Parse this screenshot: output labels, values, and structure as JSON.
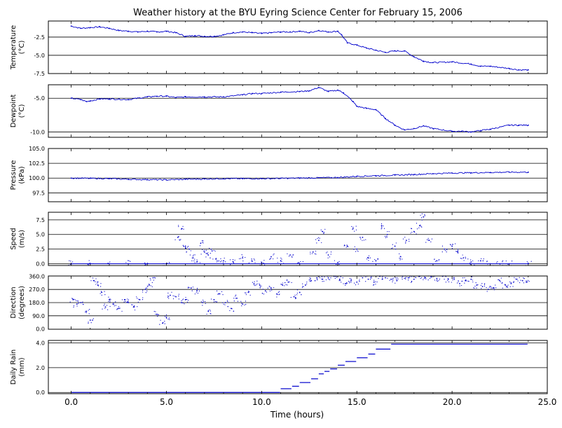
{
  "chart_data": {
    "type": "scatter",
    "title": "Weather history at the BYU Eyring Science Center for February 15, 2006",
    "xlabel": "Time (hours)",
    "xlim": [
      -1.2,
      25.0
    ],
    "xticks": [
      "0.0",
      "5.0",
      "10.0",
      "15.0",
      "20.0",
      "25.0"
    ],
    "xtick_values": [
      0,
      5,
      10,
      15,
      20,
      25
    ],
    "panels": [
      {
        "name": "temperature",
        "ylabel": [
          "Temperature",
          "(°C)"
        ],
        "ylim": [
          -7.5,
          -0.3
        ],
        "yticks": [
          -2.5,
          -5.0,
          -7.5
        ],
        "ytick_labels": [
          "-2.5",
          "-5.0",
          "-7.5"
        ],
        "color": "#0000cc",
        "mark": "line",
        "x": [
          0,
          0.5,
          1,
          1.5,
          2,
          2.5,
          3,
          3.5,
          4,
          4.5,
          5,
          5.5,
          6,
          6.5,
          7,
          7.5,
          8,
          8.5,
          9,
          9.5,
          10,
          10.5,
          11,
          11.5,
          12,
          12.5,
          13,
          13.5,
          14,
          14.2,
          14.5,
          15,
          15.5,
          16,
          16.5,
          17,
          17.5,
          18,
          18.5,
          19,
          20,
          21,
          21.5,
          22,
          23,
          23.5,
          24
        ],
        "y": [
          -1.0,
          -1.3,
          -1.2,
          -1.1,
          -1.3,
          -1.6,
          -1.7,
          -1.8,
          -1.7,
          -1.8,
          -1.7,
          -1.9,
          -2.4,
          -2.3,
          -2.4,
          -2.4,
          -2.2,
          -1.9,
          -1.8,
          -1.9,
          -2.0,
          -1.9,
          -1.8,
          -1.8,
          -1.7,
          -1.9,
          -1.6,
          -1.8,
          -1.7,
          -2.2,
          -3.3,
          -3.6,
          -4.0,
          -4.3,
          -4.6,
          -4.4,
          -4.4,
          -5.2,
          -5.8,
          -6.0,
          -5.9,
          -6.2,
          -6.5,
          -6.5,
          -6.8,
          -7.0,
          -7.0
        ]
      },
      {
        "name": "dewpoint",
        "ylabel": [
          "Dewpoint",
          "(°C)"
        ],
        "ylim": [
          -10.8,
          -3.0
        ],
        "yticks": [
          -5.0,
          -10.0
        ],
        "ytick_labels": [
          "-5.0",
          "-10.0"
        ],
        "color": "#0000cc",
        "mark": "line",
        "x": [
          0,
          0.5,
          0.8,
          1,
          1.5,
          2,
          3,
          4,
          4.5,
          5,
          5.5,
          6,
          7,
          8,
          9,
          9.5,
          10,
          11,
          12,
          12.5,
          13,
          13.5,
          14,
          14.3,
          14.8,
          15,
          15.5,
          16,
          16.5,
          17,
          17.5,
          18,
          18.5,
          19,
          20,
          20.5,
          21,
          21.5,
          22,
          23,
          23.5,
          24
        ],
        "y": [
          -5.0,
          -5.2,
          -5.5,
          -5.4,
          -5.1,
          -5.1,
          -5.2,
          -4.8,
          -4.7,
          -4.7,
          -4.9,
          -4.8,
          -4.8,
          -4.8,
          -4.5,
          -4.3,
          -4.3,
          -4.1,
          -4.0,
          -3.9,
          -3.4,
          -4.0,
          -3.8,
          -4.2,
          -5.5,
          -6.2,
          -6.5,
          -6.7,
          -8.0,
          -9.0,
          -9.7,
          -9.5,
          -9.1,
          -9.5,
          -9.9,
          -9.9,
          -10.0,
          -9.8,
          -9.6,
          -9.0,
          -9.0,
          -9.0
        ]
      },
      {
        "name": "pressure",
        "ylabel": [
          "Pressure",
          "(kPa)"
        ],
        "ylim": [
          96.0,
          105.0
        ],
        "yticks": [
          105.0,
          102.5,
          100.0,
          97.5
        ],
        "ytick_labels": [
          "105.0",
          "102.5",
          "100.0",
          "97.5"
        ],
        "color": "#0000cc",
        "mark": "line",
        "x": [
          0,
          1,
          2,
          3,
          4,
          5,
          6,
          7,
          8,
          9,
          10,
          11,
          12,
          13,
          14,
          15,
          16,
          17,
          18,
          19,
          20,
          21,
          22,
          23,
          24
        ],
        "y": [
          100.0,
          99.95,
          99.9,
          99.8,
          99.75,
          99.7,
          99.8,
          99.85,
          99.9,
          99.9,
          99.9,
          99.95,
          100.0,
          100.05,
          100.1,
          100.3,
          100.4,
          100.5,
          100.6,
          100.75,
          100.85,
          100.9,
          100.95,
          101.0,
          101.0
        ]
      },
      {
        "name": "speed",
        "ylabel": [
          "Speed",
          "(m/s)"
        ],
        "ylim": [
          -0.3,
          8.8
        ],
        "yticks": [
          7.5,
          5.0,
          2.5,
          0.0
        ],
        "ytick_labels": [
          "7.5",
          "5.0",
          "2.5",
          "0.0"
        ],
        "color": "#0000cc",
        "mark": "scatter",
        "x": [
          0,
          1,
          2,
          3,
          4,
          5,
          5.6,
          5.8,
          6.0,
          6.2,
          6.4,
          6.6,
          6.8,
          7.0,
          7.2,
          7.4,
          7.6,
          8.0,
          8.5,
          9.0,
          9.5,
          10.0,
          10.5,
          11.0,
          11.5,
          12.0,
          12.7,
          13.0,
          13.2,
          13.5,
          14.0,
          14.5,
          14.8,
          15.0,
          15.3,
          15.6,
          16.0,
          16.3,
          16.6,
          17.0,
          17.3,
          17.6,
          18.0,
          18.3,
          18.5,
          18.8,
          19.2,
          19.6,
          20.0,
          20.3,
          20.6,
          21.0,
          21.5,
          22.0,
          22.5,
          23.0,
          24.0
        ],
        "y": [
          0,
          0,
          0,
          0,
          0,
          0,
          4.5,
          6.0,
          3.0,
          2.5,
          1.0,
          0.3,
          3.5,
          2.0,
          1.5,
          2.2,
          0.8,
          0.5,
          0.3,
          1.0,
          0.4,
          0.2,
          1.2,
          0.5,
          1.5,
          0.0,
          2.0,
          4.0,
          5.5,
          1.5,
          0.2,
          3.0,
          6.0,
          2.5,
          4.5,
          1.0,
          0.5,
          6.5,
          5.0,
          3.0,
          1.2,
          4.0,
          5.5,
          6.5,
          8.0,
          4.0,
          0.5,
          2.5,
          3.0,
          2.0,
          1.0,
          0.3,
          0.5,
          0.0,
          0.0,
          0.0,
          0.0
        ]
      },
      {
        "name": "direction",
        "ylabel": [
          "Direction",
          "(degrees)"
        ],
        "ylim": [
          -2,
          362
        ],
        "yticks": [
          360.0,
          270.0,
          180.0,
          90.0,
          0.0
        ],
        "ytick_labels": [
          "360.0",
          "270.0",
          "180.0",
          "90.0",
          "0.0"
        ],
        "color": "#0000cc",
        "mark": "scatter",
        "x": [
          0.1,
          0.3,
          0.5,
          0.8,
          1.0,
          1.2,
          1.4,
          1.6,
          1.8,
          2.0,
          2.2,
          2.5,
          2.8,
          3.0,
          3.3,
          3.6,
          3.9,
          4.1,
          4.3,
          4.5,
          4.8,
          5.0,
          5.2,
          5.5,
          5.8,
          6.0,
          6.3,
          6.6,
          6.9,
          7.2,
          7.5,
          7.8,
          8.1,
          8.4,
          8.7,
          9.0,
          9.3,
          9.6,
          9.9,
          10.2,
          10.5,
          10.8,
          11.1,
          11.4,
          11.7,
          12.0,
          12.3,
          12.6,
          12.9,
          13.2,
          13.5,
          13.8,
          14.1,
          14.4,
          14.7,
          15.0,
          15.3,
          15.6,
          15.9,
          16.2,
          16.5,
          16.8,
          17.1,
          17.4,
          17.7,
          18.0,
          18.3,
          18.6,
          18.9,
          19.2,
          19.5,
          19.8,
          20.1,
          20.4,
          20.7,
          21.0,
          21.3,
          21.6,
          21.9,
          22.2,
          22.5,
          22.8,
          23.1,
          23.4,
          23.7,
          23.9
        ],
        "y": [
          200,
          170,
          180,
          120,
          60,
          330,
          300,
          250,
          150,
          200,
          170,
          140,
          200,
          180,
          150,
          200,
          270,
          300,
          350,
          100,
          40,
          80,
          230,
          220,
          180,
          200,
          280,
          260,
          180,
          120,
          200,
          240,
          180,
          140,
          210,
          170,
          250,
          310,
          300,
          260,
          280,
          240,
          300,
          320,
          220,
          250,
          300,
          330,
          350,
          340,
          350,
          360,
          340,
          310,
          330,
          320,
          350,
          340,
          320,
          360,
          350,
          340,
          330,
          360,
          350,
          340,
          360,
          350,
          355,
          345,
          360,
          340,
          350,
          310,
          330,
          340,
          300,
          290,
          270,
          280,
          330,
          300,
          310,
          340,
          330,
          320
        ]
      },
      {
        "name": "daily_rain",
        "ylabel": [
          "Daily Rain",
          "(mm)"
        ],
        "ylim": [
          -0.1,
          4.2
        ],
        "yticks": [
          4.0,
          2.0,
          0.0
        ],
        "ytick_labels": [
          "4.0",
          "2.0",
          "0.0"
        ],
        "color": "#0000cc",
        "mark": "step",
        "x": [
          0,
          11.0,
          11.6,
          12.0,
          12.6,
          13.0,
          13.3,
          13.6,
          14.0,
          14.4,
          15.0,
          15.6,
          16.0,
          16.8,
          24.0
        ],
        "y": [
          0.0,
          0.3,
          0.5,
          0.8,
          1.1,
          1.5,
          1.7,
          1.9,
          2.2,
          2.5,
          2.8,
          3.1,
          3.5,
          3.9,
          4.1
        ]
      }
    ]
  }
}
